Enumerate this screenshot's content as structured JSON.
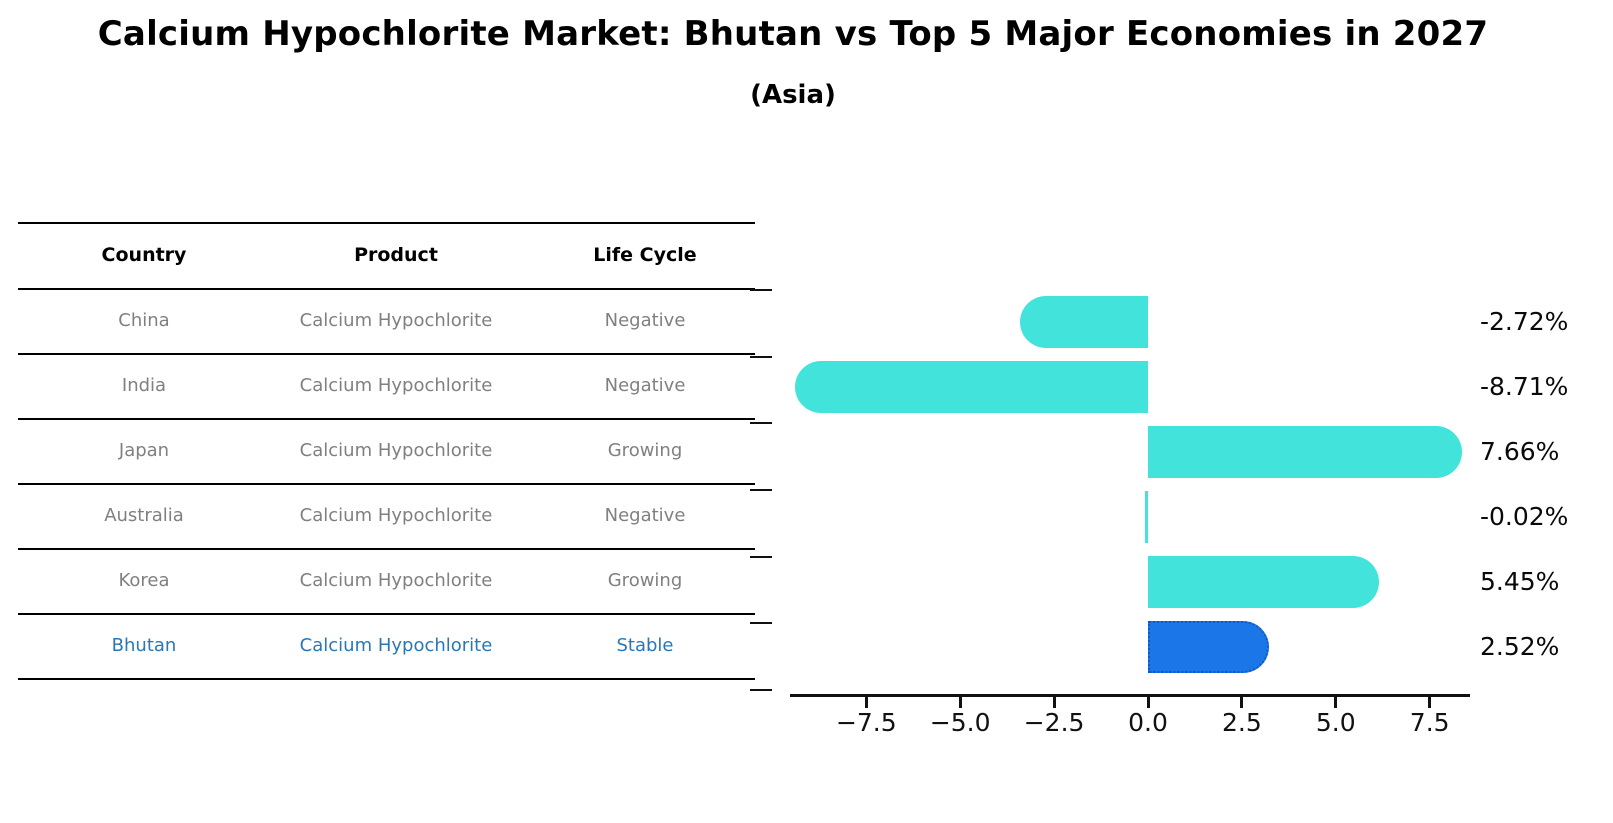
{
  "title": "Calcium Hypochlorite Market: Bhutan vs Top 5 Major Economies in 2027",
  "subtitle": "(Asia)",
  "table": {
    "headers": [
      "Country",
      "Product",
      "Life Cycle"
    ],
    "rows": [
      {
        "country": "China",
        "product": "Calcium Hypochlorite",
        "life_cycle": "Negative"
      },
      {
        "country": "India",
        "product": "Calcium Hypochlorite",
        "life_cycle": "Negative"
      },
      {
        "country": "Japan",
        "product": "Calcium Hypochlorite",
        "life_cycle": "Growing"
      },
      {
        "country": "Australia",
        "product": "Calcium Hypochlorite",
        "life_cycle": "Negative"
      },
      {
        "country": "Korea",
        "product": "Calcium Hypochlorite",
        "life_cycle": "Growing"
      },
      {
        "country": "Bhutan",
        "product": "Calcium Hypochlorite",
        "life_cycle": "Stable"
      }
    ],
    "highlight_row": "Bhutan"
  },
  "chart_data": {
    "type": "bar",
    "orientation": "horizontal",
    "title": "Calcium Hypochlorite Market: Bhutan vs Top 5 Major Economies in 2027 (Asia)",
    "categories": [
      "China",
      "India",
      "Japan",
      "Australia",
      "Korea",
      "Bhutan"
    ],
    "values": [
      -2.72,
      -8.71,
      7.66,
      -0.02,
      5.45,
      2.52
    ],
    "value_labels": [
      "-2.72%",
      "-8.71%",
      "7.66%",
      "-0.02%",
      "5.45%",
      "2.52%"
    ],
    "xticks": [
      -7.5,
      -5.0,
      -2.5,
      0.0,
      2.5,
      5.0,
      7.5
    ],
    "xtick_labels": [
      "−7.5",
      "−5.0",
      "−2.5",
      "0.0",
      "2.5",
      "5.0",
      "7.5"
    ],
    "xlim": [
      -9.6,
      8.6
    ],
    "grid": false,
    "legend": false,
    "highlight_index": 5
  },
  "colors": {
    "bar": "#42e3da",
    "highlight_bar": "#1b76e8",
    "highlight_bar_border": "#1057c8",
    "highlight_text": "#2878b8",
    "cell_text": "#808080",
    "header_text": "#000000",
    "axis": "#111111"
  }
}
